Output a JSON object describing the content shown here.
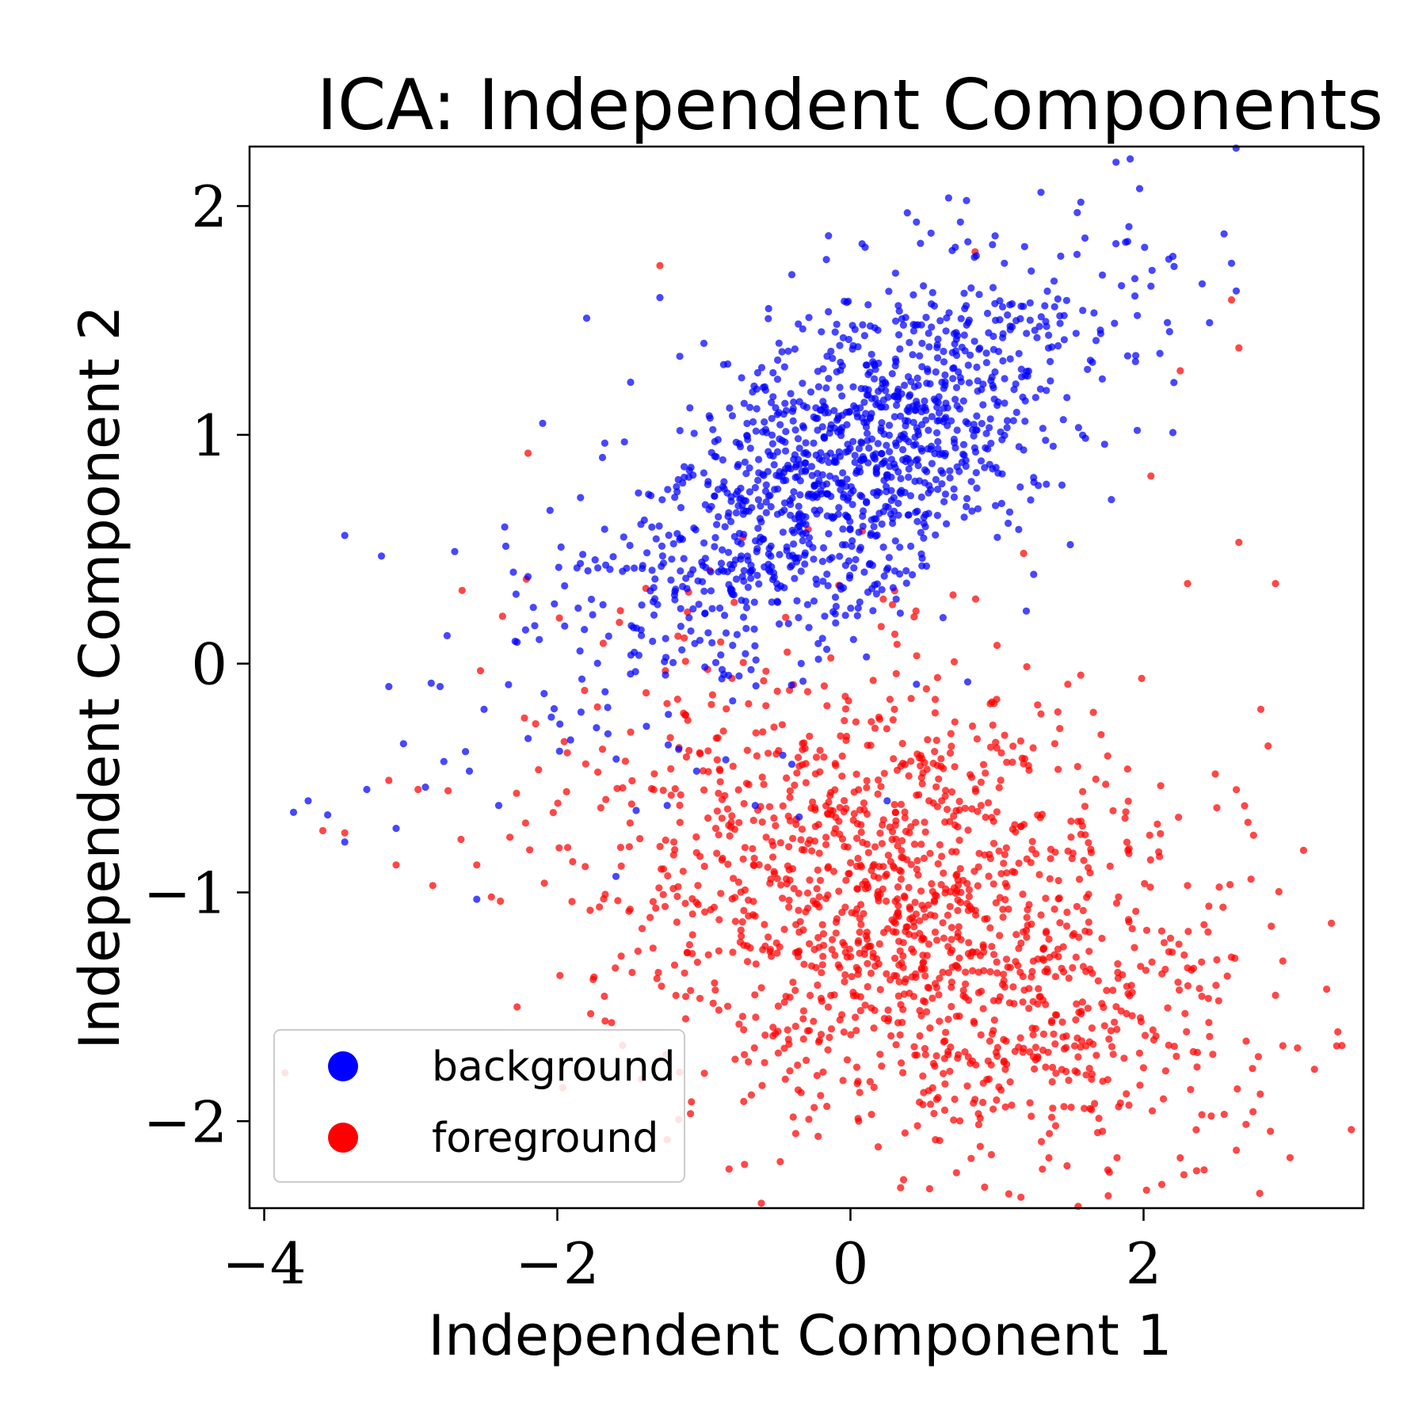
{
  "chart_data": {
    "type": "scatter",
    "title": "ICA: Independent Components",
    "xlabel": "Independent Component 1",
    "ylabel": "Independent Component 2",
    "xlim": [
      -4.1,
      3.5
    ],
    "ylim": [
      -2.38,
      2.26
    ],
    "xticks": [
      -4,
      -2,
      0,
      2
    ],
    "yticks": [
      -2,
      -1,
      0,
      1,
      2
    ],
    "xtick_labels": [
      "−4",
      "−2",
      "0",
      "2"
    ],
    "ytick_labels": [
      "−2",
      "−1",
      "0",
      "1",
      "2"
    ],
    "grid": false,
    "legend_position": "lower-left",
    "series": [
      {
        "name": "background",
        "color": "#0000ff",
        "cluster": {
          "count": 1300,
          "center": [
            -0.05,
            0.85
          ],
          "spread": [
            0.85,
            0.45
          ],
          "corr": 0.65
        },
        "points": [
          [
            -3.8,
            -0.65
          ],
          [
            -3.7,
            -0.6
          ],
          [
            -3.45,
            0.56
          ],
          [
            -3.45,
            -0.78
          ],
          [
            -3.3,
            -0.55
          ],
          [
            -3.2,
            0.47
          ],
          [
            -3.15,
            -0.1
          ],
          [
            -3.1,
            -0.72
          ],
          [
            -3.05,
            -0.35
          ],
          [
            -2.8,
            -0.1
          ],
          [
            -2.7,
            0.49
          ],
          [
            -2.5,
            -0.2
          ],
          [
            -2.3,
            0.4
          ],
          [
            -2.2,
            0.38
          ],
          [
            -2.1,
            1.05
          ],
          [
            -2.05,
            0.67
          ],
          [
            -1.95,
            0.34
          ],
          [
            -1.8,
            1.51
          ],
          [
            -1.65,
            0.12
          ],
          [
            -1.5,
            1.23
          ],
          [
            -1.3,
            1.6
          ],
          [
            -1.2,
            0.3
          ],
          [
            -1.0,
            1.4
          ],
          [
            -0.4,
            1.7
          ],
          [
            -0.15,
            1.87
          ],
          [
            0.1,
            1.82
          ],
          [
            0.45,
            1.93
          ],
          [
            0.75,
            1.93
          ],
          [
            1.05,
            1.75
          ],
          [
            1.3,
            2.06
          ],
          [
            1.6,
            1.86
          ],
          [
            1.9,
            1.91
          ],
          [
            2.05,
            1.65
          ],
          [
            2.2,
            1.78
          ],
          [
            2.4,
            1.66
          ],
          [
            2.45,
            1.49
          ],
          [
            2.6,
            1.75
          ],
          [
            2.2,
            1.01
          ],
          [
            1.5,
            0.52
          ],
          [
            1.25,
            0.39
          ],
          [
            1.2,
            0.23
          ],
          [
            0.8,
            -0.08
          ],
          [
            0.45,
            -0.09
          ],
          [
            0.25,
            -0.6
          ],
          [
            -0.35,
            -0.67
          ],
          [
            -0.4,
            -0.44
          ],
          [
            -0.65,
            -0.62
          ],
          [
            -0.85,
            -0.42
          ],
          [
            -1.05,
            -0.47
          ],
          [
            -1.25,
            -0.62
          ],
          [
            -1.6,
            -0.93
          ],
          [
            -2.55,
            -1.03
          ],
          [
            -2.6,
            -0.47
          ],
          [
            -2.9,
            -0.54
          ],
          [
            -2.4,
            -0.62
          ]
        ]
      },
      {
        "name": "foreground",
        "color": "#ff0000",
        "cluster": {
          "count": 1500,
          "center": [
            0.45,
            -1.1
          ],
          "spread": [
            1.1,
            0.55
          ],
          "corr": -0.35
        },
        "points": [
          [
            -3.6,
            -0.73
          ],
          [
            -3.45,
            -0.74
          ],
          [
            -3.15,
            -0.51
          ],
          [
            -3.1,
            -0.88
          ],
          [
            -2.95,
            -0.55
          ],
          [
            -2.85,
            -0.97
          ],
          [
            -2.65,
            0.32
          ],
          [
            -2.55,
            -0.88
          ],
          [
            -2.45,
            -1.02
          ],
          [
            -2.2,
            0.92
          ],
          [
            -1.9,
            -1.04
          ],
          [
            -1.75,
            -1.37
          ],
          [
            -1.3,
            1.74
          ],
          [
            0.85,
            1.8
          ],
          [
            2.6,
            1.59
          ],
          [
            2.65,
            1.38
          ],
          [
            2.25,
            1.28
          ],
          [
            2.05,
            0.82
          ],
          [
            2.3,
            0.35
          ],
          [
            2.65,
            0.53
          ],
          [
            2.9,
            0.35
          ],
          [
            2.8,
            -0.2
          ],
          [
            2.85,
            -0.36
          ],
          [
            2.5,
            -0.63
          ],
          [
            2.75,
            -0.75
          ],
          [
            2.95,
            -1.3
          ],
          [
            2.9,
            -1.45
          ],
          [
            3.05,
            -1.68
          ],
          [
            2.95,
            -1.67
          ],
          [
            2.55,
            -1.97
          ],
          [
            2.25,
            -2.16
          ],
          [
            1.9,
            -1.93
          ],
          [
            1.4,
            -2.02
          ],
          [
            1.1,
            -1.93
          ],
          [
            2.3,
            -1.33
          ],
          [
            2.45,
            -1.63
          ],
          [
            2.7,
            -1.65
          ],
          [
            2.3,
            -0.97
          ],
          [
            1.9,
            -0.83
          ],
          [
            1.55,
            -0.45
          ],
          [
            1.3,
            -0.22
          ],
          [
            1.0,
            0.08
          ],
          [
            0.7,
            0.3
          ],
          [
            0.3,
            -0.2
          ]
        ]
      }
    ]
  }
}
